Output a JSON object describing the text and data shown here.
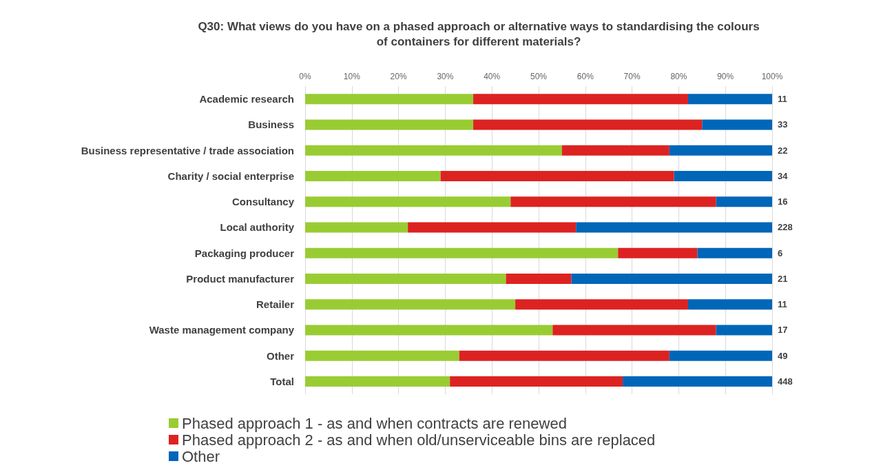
{
  "chart_data": {
    "type": "bar",
    "orientation": "horizontal",
    "stacked": true,
    "title": "Q30: What views do you have on a phased approach or alternative ways to standardising the colours\nof containers for different materials?",
    "categories": [
      "Academic research",
      "Business",
      "Business representative / trade association",
      "Charity / social enterprise",
      "Consultancy",
      "Local authority",
      "Packaging producer",
      "Product manufacturer",
      "Retailer",
      "Waste management company",
      "Other",
      "Total"
    ],
    "series": [
      {
        "name": "Phased approach 1 - as and when contracts are renewed",
        "color": "#99cc33",
        "values": [
          36,
          36,
          55,
          29,
          44,
          22,
          67,
          43,
          45,
          53,
          33,
          31
        ]
      },
      {
        "name": "Phased approach 2 - as and when old/unserviceable bins are replaced",
        "color": "#dd2222",
        "values": [
          46,
          49,
          23,
          50,
          44,
          36,
          17,
          14,
          37,
          35,
          45,
          37
        ]
      },
      {
        "name": "Other",
        "color": "#0066b8",
        "values": [
          18,
          15,
          22,
          21,
          12,
          42,
          16,
          43,
          18,
          12,
          22,
          32
        ]
      }
    ],
    "annotations": [
      "11",
      "33",
      "22",
      "34",
      "16",
      "228",
      "6",
      "21",
      "11",
      "17",
      "49",
      "448"
    ],
    "xlim": [
      0,
      100
    ],
    "xticks": [
      {
        "value": 0,
        "label": "0%"
      },
      {
        "value": 10,
        "label": "10%"
      },
      {
        "value": 20,
        "label": "20%"
      },
      {
        "value": 30,
        "label": "30%"
      },
      {
        "value": 40,
        "label": "40%"
      },
      {
        "value": 50,
        "label": "50%"
      },
      {
        "value": 60,
        "label": "60%"
      },
      {
        "value": 70,
        "label": "70%"
      },
      {
        "value": 80,
        "label": "80%"
      },
      {
        "value": 90,
        "label": "90%"
      },
      {
        "value": 100,
        "label": "100%"
      }
    ],
    "grid": "x",
    "legend": "bottom left"
  }
}
